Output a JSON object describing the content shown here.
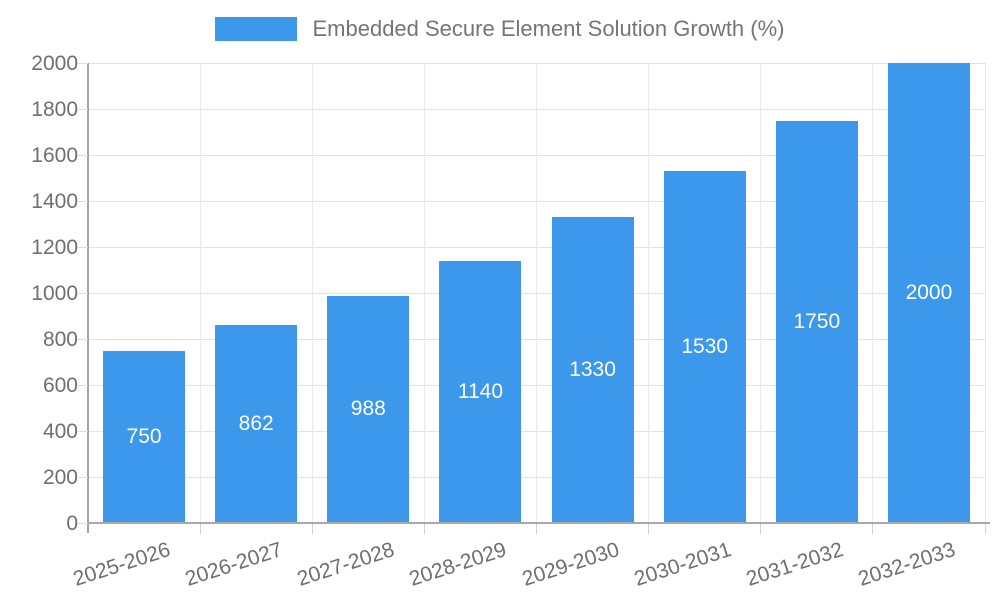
{
  "legend": {
    "label": "Embedded Secure Element Solution Growth (%)"
  },
  "chart_data": {
    "type": "bar",
    "title": "Embedded Secure Element Solution Growth (%)",
    "categories": [
      "2025-2026",
      "2026-2027",
      "2027-2028",
      "2028-2029",
      "2029-2030",
      "2030-2031",
      "2031-2032",
      "2032-2033"
    ],
    "series": [
      {
        "name": "Embedded Secure Element Solution Growth (%)",
        "values": [
          750,
          862,
          988,
          1140,
          1330,
          1530,
          1750,
          2000
        ]
      }
    ],
    "value_labels": [
      "750",
      "862",
      "988",
      "1140",
      "1330",
      "1530",
      "1750",
      "2000"
    ],
    "xlabel": "",
    "ylabel": "",
    "ylim": [
      0,
      2000
    ],
    "ytick_step": 200,
    "yticks": [
      0,
      200,
      400,
      600,
      800,
      1000,
      1200,
      1400,
      1600,
      1800,
      2000
    ],
    "grid": true,
    "legend_position": "top-center",
    "colors": {
      "bar": "#3b98eb",
      "value_label": "#ffffff",
      "legend_text": "#757575",
      "tick_label": "#6f6f6f",
      "gridline": "#e2e2e2",
      "axis_line": "#a6a6a6",
      "background": "#ffffff"
    }
  }
}
